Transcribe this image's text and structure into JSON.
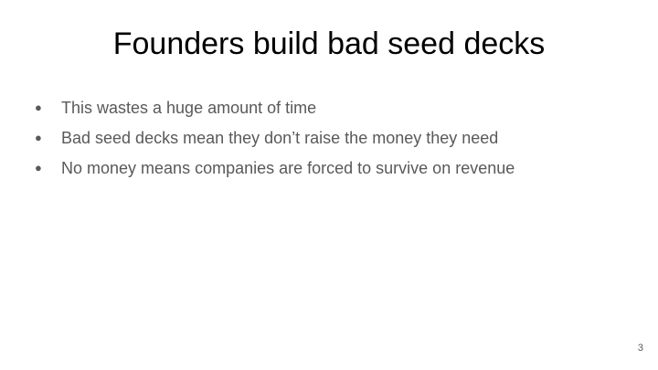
{
  "slide": {
    "title": "Founders build bad seed decks",
    "bullets": [
      "This wastes a huge amount of time",
      "Bad seed decks mean they don’t raise the money they need",
      "No money means companies are forced to survive on revenue"
    ],
    "bullet_symbol": "●",
    "page_number": "3",
    "text_color": "#595959",
    "title_color": "#000000"
  }
}
